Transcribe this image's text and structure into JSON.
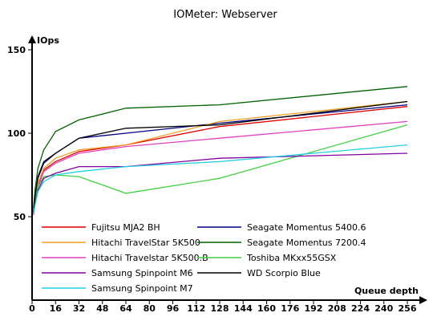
{
  "chart_data": {
    "type": "line",
    "title": "IOMeter: Webserver",
    "ylabel": "IOps",
    "xlabel": "Queue depth",
    "xlim": [
      0,
      264
    ],
    "ylim": [
      0,
      150
    ],
    "x_ticks": [
      0,
      16,
      32,
      48,
      64,
      80,
      96,
      112,
      128,
      144,
      160,
      176,
      192,
      208,
      224,
      240,
      256
    ],
    "y_ticks": [
      50,
      100,
      150
    ],
    "grid": false,
    "legend": "inside-bottom",
    "x": [
      1,
      2,
      4,
      8,
      16,
      32,
      64,
      128,
      256
    ],
    "series": [
      {
        "name": "Fujitsu MJA2 BH",
        "color": "#e00000",
        "values": [
          52,
          59,
          69,
          78,
          83,
          89,
          93,
          104,
          116
        ]
      },
      {
        "name": "Seagate Momentus 5400.6",
        "color": "#000080",
        "values": [
          52,
          62,
          73,
          82,
          88,
          97,
          100,
          106,
          117
        ]
      },
      {
        "name": "Hitachi TravelStar 5K500",
        "color": "#f0a020",
        "values": [
          52,
          60,
          70,
          79,
          85,
          90,
          93,
          107,
          119
        ]
      },
      {
        "name": "Seagate Momentus 7200.4",
        "color": "#006400",
        "values": [
          55,
          66,
          79,
          90,
          101,
          108,
          115,
          117,
          128
        ]
      },
      {
        "name": "Hitachi Travelstar 5K500.B",
        "color": "#e040c0",
        "values": [
          51,
          58,
          68,
          77,
          82,
          88,
          92,
          97,
          107
        ]
      },
      {
        "name": "Toshiba MKxx55GSX",
        "color": "#40d040",
        "values": [
          53,
          60,
          68,
          74,
          75,
          74,
          64,
          73,
          105
        ]
      },
      {
        "name": "Samsung Spinpoint M6",
        "color": "#8000a0",
        "values": [
          52,
          58,
          66,
          73,
          76,
          80,
          80,
          85,
          88
        ]
      },
      {
        "name": "WD Scorpio Blue",
        "color": "#000000",
        "values": [
          53,
          62,
          74,
          83,
          88,
          97,
          103,
          105,
          119
        ]
      },
      {
        "name": "Samsung Spinpoint M7",
        "color": "#20d0e0",
        "values": [
          52,
          57,
          65,
          71,
          75,
          77,
          80,
          83,
          93
        ]
      }
    ]
  }
}
